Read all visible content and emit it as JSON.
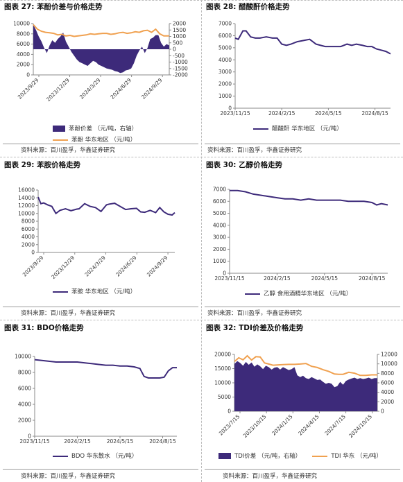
{
  "colors": {
    "purple": "#3d2a7a",
    "orange": "#f0a150",
    "axis": "#8a8a8a"
  },
  "panels": [
    {
      "title": "图表 27: 苯酚价差与价格走势",
      "source": "资料来源：百川盈孚，华鑫证券研究",
      "legend": [
        "苯酚价差 （元/吨，右轴）",
        "苯酚 华东地区 （元/吨）"
      ]
    },
    {
      "title": "图表 28: 醋酸酐价格走势",
      "source": "资料来源：百川盈孚，华鑫证券研究",
      "legend": [
        "醋酸酐 华东地区 （元/吨）"
      ]
    },
    {
      "title": "图表 29: 苯胺价格走势",
      "source": "资料来源：百川盈孚，华鑫证券研究",
      "legend": [
        "苯胺 华东地区 （元/吨）"
      ]
    },
    {
      "title": "图表 30: 乙醇价格走势",
      "source": "资料来源：百川盈孚，华鑫证券研究",
      "legend": [
        "乙醇 食用酒精华东地区 （元/吨）"
      ]
    },
    {
      "title": "图表 31: BDO价格走势",
      "source": "资料来源：百川盈孚，华鑫证券研究",
      "legend": [
        "BDO 华东散水 （元/吨）"
      ]
    },
    {
      "title": "图表 32: TDI价差及价格走势",
      "source": "资料来源：百川盈孚，华鑫证券研究",
      "legend": [
        "TDI价差 （元/吨，右轴）",
        "TDI 华东 （元/吨）"
      ]
    }
  ],
  "chart_data": [
    {
      "type": "area",
      "title": "图表 27: 苯酚价差与价格走势",
      "x_ticks": [
        "2023/9/29",
        "2023/12/29",
        "2024/3/29",
        "2024/6/29",
        "2024/9/29"
      ],
      "ylim": [
        0,
        10000
      ],
      "y_ticks": [
        0,
        2000,
        4000,
        6000,
        8000,
        10000
      ],
      "y2lim": [
        -2000,
        2000
      ],
      "y2_ticks": [
        "-2000",
        "-1500",
        "-1000",
        "-500",
        "0",
        "500",
        "1000",
        "1500",
        "2000"
      ],
      "series": [
        {
          "name": "苯酚价差 （元/吨，右轴）",
          "type": "area",
          "axis": "right",
          "x": [
            0,
            0.02,
            0.04,
            0.06,
            0.08,
            0.1,
            0.12,
            0.14,
            0.16,
            0.18,
            0.2,
            0.22,
            0.24,
            0.26,
            0.28,
            0.3,
            0.32,
            0.34,
            0.36,
            0.38,
            0.4,
            0.42,
            0.44,
            0.46,
            0.48,
            0.5,
            0.52,
            0.54,
            0.56,
            0.58,
            0.6,
            0.62,
            0.64,
            0.66,
            0.68,
            0.7,
            0.72,
            0.74,
            0.76,
            0.78,
            0.8,
            0.82,
            0.84,
            0.86,
            0.88,
            0.9,
            0.92,
            0.94,
            0.96,
            0.98,
            1.0
          ],
          "values": [
            1900,
            1500,
            1000,
            600,
            100,
            -300,
            300,
            700,
            500,
            800,
            1000,
            1300,
            600,
            200,
            -200,
            -500,
            -800,
            -1000,
            -1100,
            -1200,
            -1300,
            -1100,
            -900,
            -1000,
            -1200,
            -1300,
            -1400,
            -1500,
            -1550,
            -1600,
            -1700,
            -1750,
            -1850,
            -1800,
            -1650,
            -1600,
            -1500,
            -1100,
            -500,
            -100,
            200,
            -300,
            100,
            800,
            900,
            1100,
            1100,
            500,
            200,
            400,
            300
          ]
        },
        {
          "name": "苯酚 华东地区 （元/吨）",
          "type": "line",
          "axis": "left",
          "x": [
            0,
            0.03,
            0.06,
            0.09,
            0.12,
            0.15,
            0.18,
            0.21,
            0.24,
            0.27,
            0.3,
            0.33,
            0.36,
            0.39,
            0.42,
            0.45,
            0.48,
            0.51,
            0.54,
            0.57,
            0.6,
            0.63,
            0.66,
            0.69,
            0.72,
            0.75,
            0.78,
            0.81,
            0.84,
            0.87,
            0.9,
            0.93,
            0.96,
            1.0
          ],
          "values": [
            9800,
            8900,
            8500,
            8300,
            8200,
            8100,
            7800,
            7900,
            7600,
            7700,
            7500,
            7600,
            7700,
            7800,
            8000,
            7900,
            8000,
            8100,
            8100,
            7900,
            8000,
            8200,
            8300,
            8100,
            8200,
            8400,
            8300,
            8600,
            8700,
            8300,
            8900,
            8000,
            7600,
            7600
          ]
        }
      ]
    },
    {
      "type": "line",
      "title": "图表 28: 醋酸酐价格走势",
      "x_ticks": [
        "2023/11/15",
        "2024/2/15",
        "2024/5/15",
        "2024/8/15"
      ],
      "ylim": [
        0,
        7000
      ],
      "y_ticks": [
        0,
        1000,
        2000,
        3000,
        4000,
        5000,
        6000,
        7000
      ],
      "series": [
        {
          "name": "醋酸酐 华东地区 （元/吨）",
          "x": [
            0,
            0.02,
            0.05,
            0.07,
            0.1,
            0.13,
            0.16,
            0.2,
            0.24,
            0.27,
            0.3,
            0.33,
            0.36,
            0.4,
            0.44,
            0.48,
            0.52,
            0.55,
            0.58,
            0.61,
            0.64,
            0.68,
            0.72,
            0.75,
            0.78,
            0.82,
            0.85,
            0.88,
            0.91,
            0.94,
            0.97,
            1.0
          ],
          "values": [
            5800,
            5700,
            6400,
            6400,
            5900,
            5800,
            5800,
            5900,
            5800,
            5800,
            5300,
            5200,
            5300,
            5500,
            5600,
            5700,
            5300,
            5200,
            5100,
            5100,
            5100,
            5100,
            5300,
            5200,
            5300,
            5200,
            5100,
            5100,
            4900,
            4800,
            4700,
            4500
          ]
        }
      ]
    },
    {
      "type": "line",
      "title": "图表 29: 苯胺价格走势",
      "x_ticks": [
        "2023/9/29",
        "2023/12/29",
        "2024/3/29",
        "2024/6/29",
        "2024/9/29"
      ],
      "ylim": [
        0,
        16000
      ],
      "y_ticks": [
        0,
        2000,
        4000,
        6000,
        8000,
        10000,
        12000,
        14000,
        16000
      ],
      "series": [
        {
          "name": "苯胺 华东地区 （元/吨）",
          "x": [
            0,
            0.02,
            0.04,
            0.07,
            0.1,
            0.13,
            0.16,
            0.2,
            0.24,
            0.28,
            0.3,
            0.34,
            0.38,
            0.42,
            0.46,
            0.5,
            0.52,
            0.56,
            0.6,
            0.64,
            0.68,
            0.72,
            0.75,
            0.78,
            0.82,
            0.86,
            0.89,
            0.92,
            0.95,
            0.98,
            1.0
          ],
          "values": [
            14200,
            12500,
            12700,
            12200,
            11800,
            10000,
            10800,
            11200,
            10700,
            11100,
            11200,
            12500,
            11800,
            11500,
            10500,
            12200,
            12400,
            12600,
            11800,
            11000,
            11200,
            11300,
            10400,
            10300,
            10800,
            10200,
            11500,
            10400,
            9800,
            9600,
            10200
          ]
        }
      ]
    },
    {
      "type": "line",
      "title": "图表 30: 乙醇价格走势",
      "x_ticks": [
        "2023/11/15",
        "2024/2/15",
        "2024/5/15",
        "2024/8/15"
      ],
      "ylim": [
        0,
        7000
      ],
      "y_ticks": [
        0,
        1000,
        2000,
        3000,
        4000,
        5000,
        6000,
        7000
      ],
      "series": [
        {
          "name": "乙醇 食用酒精华东地区 （元/吨）",
          "x": [
            0,
            0.05,
            0.1,
            0.15,
            0.2,
            0.25,
            0.3,
            0.35,
            0.4,
            0.45,
            0.5,
            0.55,
            0.6,
            0.65,
            0.7,
            0.75,
            0.8,
            0.85,
            0.9,
            0.93,
            0.96,
            1.0
          ],
          "values": [
            6900,
            6900,
            6800,
            6600,
            6500,
            6400,
            6300,
            6200,
            6200,
            6100,
            6200,
            6100,
            6100,
            6100,
            6100,
            6000,
            6000,
            6000,
            5900,
            5700,
            5800,
            5700
          ]
        }
      ]
    },
    {
      "type": "line",
      "title": "图表 31: BDO价格走势",
      "x_ticks": [
        "2023/11/15",
        "2024/2/15",
        "2024/5/15",
        "2024/8/15"
      ],
      "ylim": [
        0,
        10000
      ],
      "y_ticks": [
        0,
        2000,
        4000,
        6000,
        8000,
        10000
      ],
      "series": [
        {
          "name": "BDO 华东散水 （元/吨）",
          "x": [
            0,
            0.05,
            0.1,
            0.15,
            0.2,
            0.3,
            0.4,
            0.45,
            0.5,
            0.55,
            0.6,
            0.65,
            0.7,
            0.74,
            0.77,
            0.8,
            0.84,
            0.88,
            0.91,
            0.94,
            0.97,
            1.0
          ],
          "values": [
            9600,
            9500,
            9400,
            9300,
            9300,
            9300,
            9100,
            9000,
            8900,
            8900,
            8800,
            8800,
            8700,
            8500,
            7500,
            7300,
            7300,
            7300,
            7400,
            8200,
            8600,
            8600
          ]
        }
      ]
    },
    {
      "type": "area",
      "title": "图表 32: TDI价差及价格走势",
      "x_ticks": [
        "2023/7/15",
        "2023/10/15",
        "2024/1/15",
        "2024/4/15",
        "2024/7/15",
        "2024/10/15"
      ],
      "ylim": [
        0,
        20000
      ],
      "y_ticks": [
        0,
        5000,
        10000,
        15000,
        20000
      ],
      "y2lim": [
        0,
        12000
      ],
      "y2_ticks": [
        "0",
        "2000",
        "4000",
        "6000",
        "8000",
        "10000",
        "12000"
      ],
      "series": [
        {
          "name": "TDI价差 （元/吨，右轴）",
          "type": "area",
          "axis": "right",
          "x": [
            0,
            0.02,
            0.04,
            0.06,
            0.08,
            0.1,
            0.12,
            0.14,
            0.16,
            0.18,
            0.2,
            0.22,
            0.24,
            0.26,
            0.28,
            0.3,
            0.32,
            0.34,
            0.36,
            0.38,
            0.4,
            0.42,
            0.44,
            0.46,
            0.48,
            0.5,
            0.52,
            0.54,
            0.56,
            0.58,
            0.6,
            0.62,
            0.64,
            0.66,
            0.68,
            0.7,
            0.72,
            0.74,
            0.76,
            0.78,
            0.8,
            0.82,
            0.84,
            0.86,
            0.88,
            0.9,
            0.92,
            0.94,
            0.96,
            0.98,
            1.0
          ],
          "values": [
            10000,
            10600,
            10200,
            9600,
            10400,
            9800,
            10300,
            9400,
            9900,
            9500,
            8900,
            9600,
            9300,
            8800,
            9200,
            9300,
            8800,
            9300,
            9000,
            8700,
            8900,
            9300,
            7600,
            7200,
            7500,
            7000,
            6800,
            7200,
            6900,
            6600,
            6700,
            6200,
            5800,
            6000,
            5800,
            5100,
            5300,
            6200,
            5600,
            6400,
            6700,
            6900,
            7100,
            6800,
            7000,
            6800,
            6900,
            7100,
            6800,
            7000,
            7000
          ]
        },
        {
          "name": "TDI 华东 （元/吨）",
          "type": "line",
          "axis": "left",
          "x": [
            0,
            0.03,
            0.06,
            0.09,
            0.12,
            0.15,
            0.18,
            0.21,
            0.24,
            0.27,
            0.3,
            0.34,
            0.38,
            0.42,
            0.46,
            0.5,
            0.54,
            0.58,
            0.62,
            0.66,
            0.7,
            0.73,
            0.76,
            0.8,
            0.84,
            0.88,
            0.92,
            0.96,
            1.0
          ],
          "values": [
            17500,
            18800,
            18100,
            19500,
            18000,
            19200,
            19100,
            17000,
            16600,
            16200,
            16300,
            16400,
            16500,
            16500,
            16600,
            16800,
            15800,
            15400,
            14600,
            14000,
            13100,
            13000,
            13000,
            13700,
            13400,
            12600,
            12600,
            12800,
            12800
          ]
        }
      ]
    }
  ]
}
